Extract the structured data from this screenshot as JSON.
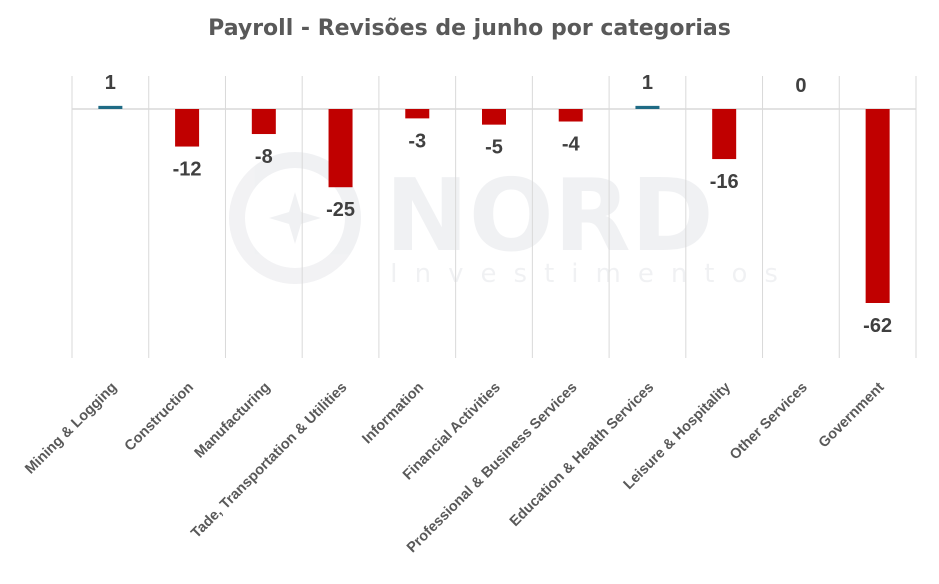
{
  "chart_data": {
    "type": "bar",
    "title": "Payroll  - Revisões de junho por categorias",
    "categories": [
      "Mining & Logging",
      "Construction",
      "Manufacturing",
      "Tade, Transportation & Utilities",
      "Information",
      "Financial Activities",
      "Professional & Business Services",
      "Education & Health Services",
      "Leisure & Hospitality",
      "Other Services",
      "Government"
    ],
    "values": [
      1,
      -12,
      -8,
      -25,
      -3,
      -5,
      -4,
      1,
      -16,
      0,
      -62
    ],
    "data_labels": [
      "1",
      "-12",
      "-8",
      "-25",
      "-3",
      "-5",
      "-4",
      "1",
      "-16",
      "0",
      "-62"
    ],
    "ylim": [
      -80,
      9
    ],
    "grid": "vertical category separators",
    "legend": "none",
    "colors": {
      "positive": "#1f6b85",
      "negative": "#c00000",
      "label": "#404040",
      "title": "#595959"
    }
  },
  "watermark": {
    "brand": "NORD",
    "sub": "Investimentos"
  }
}
